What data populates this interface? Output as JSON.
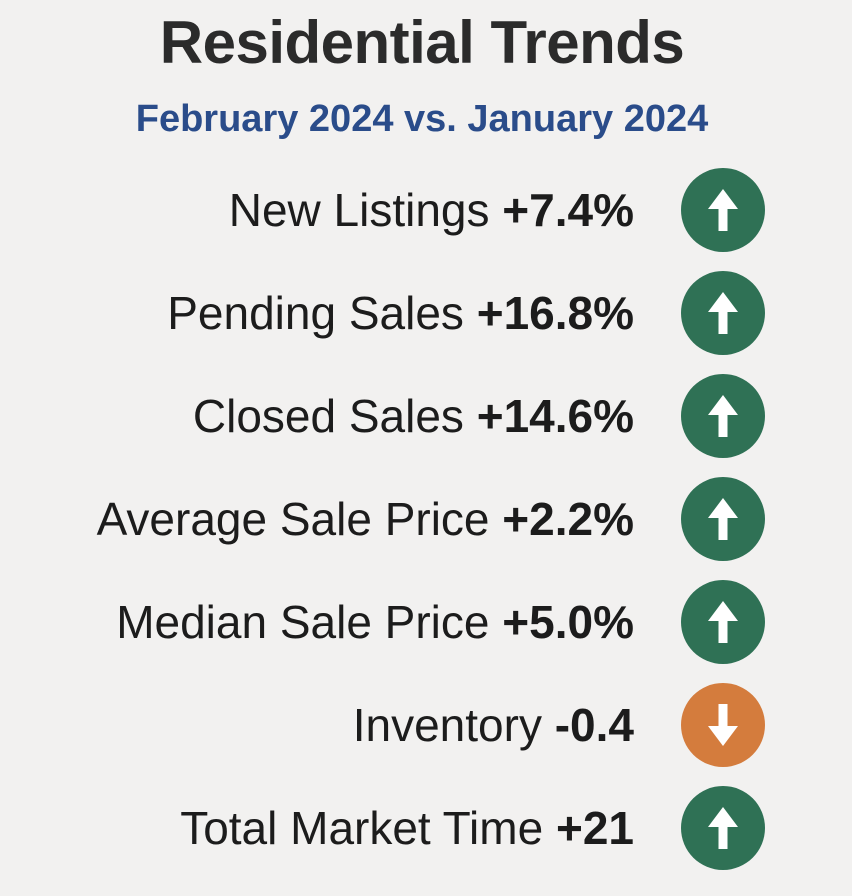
{
  "header": {
    "title": "Residential Trends",
    "subtitle": "February 2024 vs. January 2024"
  },
  "colors": {
    "up": "#2f7155",
    "down": "#d47c3d",
    "title": "#2b2b2b",
    "subtitle": "#2a4c8a",
    "background": "#f2f1f0"
  },
  "metrics": [
    {
      "label": "New Listings",
      "value": "+7.4%",
      "direction": "up",
      "icon": "arrow-up-icon"
    },
    {
      "label": "Pending Sales",
      "value": "+16.8%",
      "direction": "up",
      "icon": "arrow-up-icon"
    },
    {
      "label": "Closed Sales",
      "value": "+14.6%",
      "direction": "up",
      "icon": "arrow-up-icon"
    },
    {
      "label": "Average Sale Price",
      "value": "+2.2%",
      "direction": "up",
      "icon": "arrow-up-icon"
    },
    {
      "label": "Median Sale Price",
      "value": "+5.0%",
      "direction": "up",
      "icon": "arrow-up-icon"
    },
    {
      "label": "Inventory",
      "value": "-0.4",
      "direction": "down",
      "icon": "arrow-down-icon"
    },
    {
      "label": "Total Market Time",
      "value": "+21",
      "direction": "up",
      "icon": "arrow-up-icon"
    }
  ]
}
